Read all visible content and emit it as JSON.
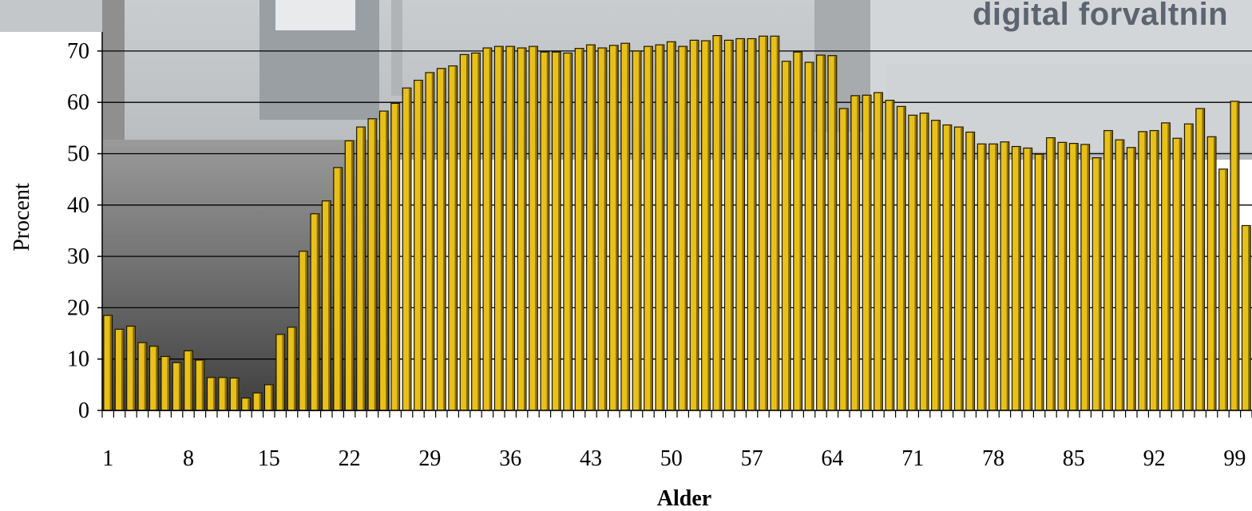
{
  "photo_text": "digital forvaltnin",
  "colors": {
    "bar_face": "#e8c01a",
    "bar_edge": "#1a1400",
    "bar_shade": "#8a6d00",
    "grid": "#000000"
  },
  "chart_data": {
    "type": "bar",
    "xlabel": "Alder",
    "ylabel": "Procent",
    "ylim": [
      0,
      70
    ],
    "yticks": [
      0,
      10,
      20,
      30,
      40,
      50,
      60,
      70
    ],
    "xtick_labels": [
      "1",
      "8",
      "15",
      "22",
      "29",
      "36",
      "43",
      "50",
      "57",
      "64",
      "71",
      "78",
      "85",
      "92",
      "99"
    ],
    "grid": "horizontal",
    "categories": [
      1,
      2,
      3,
      4,
      5,
      6,
      7,
      8,
      9,
      10,
      11,
      12,
      13,
      14,
      15,
      16,
      17,
      18,
      19,
      20,
      21,
      22,
      23,
      24,
      25,
      26,
      27,
      28,
      29,
      30,
      31,
      32,
      33,
      34,
      35,
      36,
      37,
      38,
      39,
      40,
      41,
      42,
      43,
      44,
      45,
      46,
      47,
      48,
      49,
      50,
      51,
      52,
      53,
      54,
      55,
      56,
      57,
      58,
      59,
      60,
      61,
      62,
      63,
      64,
      65,
      66,
      67,
      68,
      69,
      70,
      71,
      72,
      73,
      74,
      75,
      76,
      77,
      78,
      79,
      80,
      81,
      82,
      83,
      84,
      85,
      86,
      87,
      88,
      89,
      90,
      91,
      92,
      93,
      94,
      95,
      96,
      97,
      98,
      99,
      100
    ],
    "values": [
      18.5,
      15.8,
      16.4,
      13.2,
      12.5,
      10.5,
      9.3,
      11.6,
      9.8,
      6.4,
      6.4,
      6.3,
      2.4,
      3.4,
      5.0,
      14.8,
      16.2,
      31.0,
      38.3,
      40.8,
      47.3,
      52.5,
      55.2,
      56.8,
      58.3,
      59.8,
      62.8,
      64.3,
      65.8,
      66.6,
      67.1,
      69.3,
      69.6,
      70.6,
      70.9,
      70.9,
      70.6,
      70.9,
      69.8,
      69.8,
      69.6,
      70.5,
      71.2,
      70.6,
      71.1,
      71.5,
      70.0,
      70.9,
      71.2,
      71.8,
      70.9,
      72.1,
      72.0,
      73.0,
      72.1,
      72.4,
      72.4,
      72.9,
      72.9,
      68.0,
      69.8,
      67.8,
      69.2,
      69.1,
      58.8,
      61.3,
      61.4,
      61.9,
      60.4,
      59.2,
      57.5,
      57.9,
      56.5,
      55.6,
      55.2,
      54.2,
      51.9,
      51.9,
      52.3,
      51.4,
      51.1,
      49.9,
      53.1,
      52.2,
      52.0,
      51.8,
      49.2,
      54.5,
      52.7,
      51.2,
      54.3,
      54.5,
      56.0,
      53.0,
      55.8,
      58.8,
      53.3,
      47.0,
      60.2,
      36.0
    ]
  }
}
